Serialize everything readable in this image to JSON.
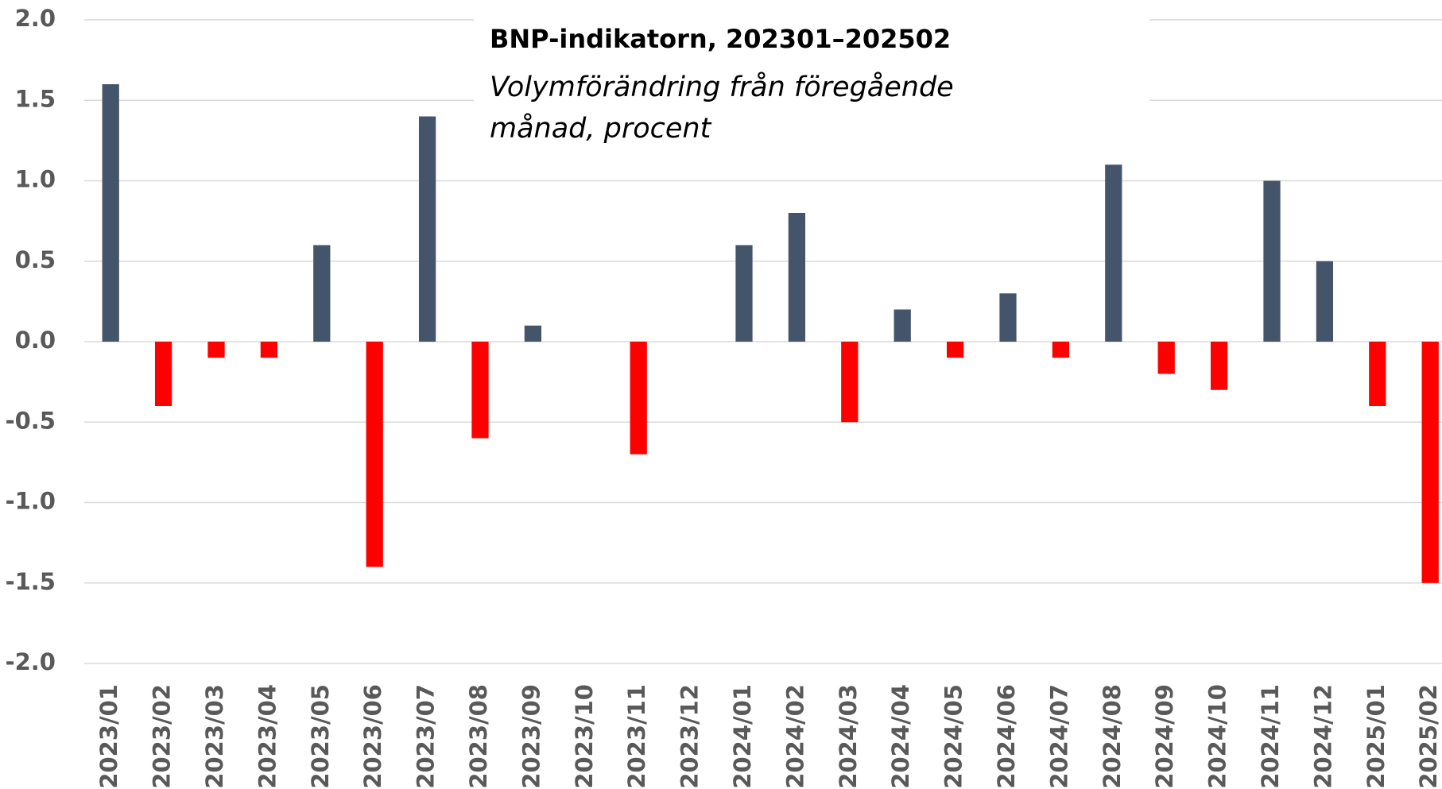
{
  "chart_data": {
    "type": "bar",
    "title": "BNP-indikatorn, 202301–202502",
    "subtitle": "Volymförändring från föregående månad, procent",
    "categories": [
      "2023/01",
      "2023/02",
      "2023/03",
      "2023/04",
      "2023/05",
      "2023/06",
      "2023/07",
      "2023/08",
      "2023/09",
      "2023/10",
      "2023/11",
      "2023/12",
      "2024/01",
      "2024/02",
      "2024/03",
      "2024/04",
      "2024/05",
      "2024/06",
      "2024/07",
      "2024/08",
      "2024/09",
      "2024/10",
      "2024/11",
      "2024/12",
      "2025/01",
      "2025/02"
    ],
    "values": [
      1.6,
      -0.4,
      -0.1,
      -0.1,
      0.6,
      -1.4,
      1.4,
      -0.6,
      0.1,
      0.0,
      -0.7,
      0.0,
      0.6,
      0.8,
      -0.5,
      0.2,
      -0.1,
      0.3,
      -0.1,
      1.1,
      -0.2,
      -0.3,
      1.0,
      0.5,
      -0.4,
      -1.5
    ],
    "colors": [
      "#44546a",
      "#ff0000",
      "#ff0000",
      "#ff0000",
      "#44546a",
      "#ff0000",
      "#44546a",
      "#ff0000",
      "#44546a",
      "#44546a",
      "#ff0000",
      "#44546a",
      "#44546a",
      "#44546a",
      "#ff0000",
      "#44546a",
      "#ff0000",
      "#44546a",
      "#ff0000",
      "#44546a",
      "#ff0000",
      "#ff0000",
      "#44546a",
      "#44546a",
      "#ff0000",
      "#ff0000"
    ],
    "ylim": [
      -2.0,
      2.0
    ],
    "yticks": [
      {
        "value": -2.0,
        "label": "-2.0"
      },
      -1.5,
      {
        "value": -1.0,
        "label": "-1.0"
      },
      -0.5,
      {
        "value": 0.0,
        "label": "0.0"
      },
      0.5,
      {
        "value": 1.0,
        "label": "1.0"
      },
      1.5,
      {
        "value": 2.0,
        "label": "2.0"
      }
    ],
    "grid": true
  }
}
